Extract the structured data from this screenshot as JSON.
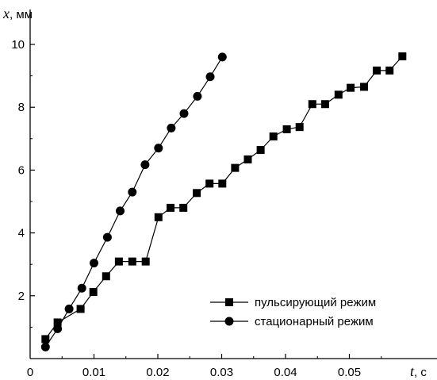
{
  "chart_data": {
    "type": "line",
    "title": "",
    "xlabel": {
      "symbol": "t",
      "unit": ", с"
    },
    "ylabel": {
      "symbol": "x",
      "unit": ", мм"
    },
    "xlim": [
      0,
      0.06
    ],
    "ylim": [
      0,
      10.5
    ],
    "x_ticks": [
      {
        "value": 0,
        "label": "0"
      },
      {
        "value": 0.01,
        "label": "0.01"
      },
      {
        "value": 0.02,
        "label": "0.02"
      },
      {
        "value": 0.03,
        "label": "0.03"
      },
      {
        "value": 0.04,
        "label": "0.04"
      },
      {
        "value": 0.05,
        "label": "0.05"
      }
    ],
    "y_ticks": [
      {
        "value": 2,
        "label": "2"
      },
      {
        "value": 4,
        "label": "4"
      },
      {
        "value": 6,
        "label": "6"
      },
      {
        "value": 8,
        "label": "8"
      },
      {
        "value": 10,
        "label": "10"
      }
    ],
    "grid": false,
    "legend_position": "bottom-right",
    "series": [
      {
        "name": "пульсирующий режим",
        "marker": "square",
        "x": [
          0.0024,
          0.0043,
          0.0079,
          0.0099,
          0.0119,
          0.0139,
          0.016,
          0.0181,
          0.0201,
          0.022,
          0.024,
          0.0261,
          0.0281,
          0.0301,
          0.0321,
          0.0341,
          0.0361,
          0.0381,
          0.0402,
          0.0422,
          0.0442,
          0.0462,
          0.0483,
          0.0502,
          0.0523,
          0.0543,
          0.0563,
          0.0583
        ],
        "y": [
          0.62,
          1.15,
          1.58,
          2.12,
          2.62,
          3.09,
          3.09,
          3.09,
          4.5,
          4.8,
          4.8,
          5.27,
          5.57,
          5.57,
          6.07,
          6.34,
          6.64,
          7.07,
          7.3,
          7.37,
          8.1,
          8.1,
          8.4,
          8.62,
          8.65,
          9.17,
          9.17,
          9.62
        ]
      },
      {
        "name": "стационарный режим",
        "marker": "circle",
        "x": [
          0.0024,
          0.0043,
          0.0061,
          0.0081,
          0.01,
          0.0121,
          0.0141,
          0.016,
          0.018,
          0.0201,
          0.0221,
          0.0241,
          0.0262,
          0.0282,
          0.0301
        ],
        "y": [
          0.37,
          0.95,
          1.58,
          2.24,
          3.04,
          3.86,
          4.7,
          5.3,
          6.17,
          6.7,
          7.34,
          7.8,
          8.35,
          8.97,
          9.6
        ]
      }
    ]
  }
}
